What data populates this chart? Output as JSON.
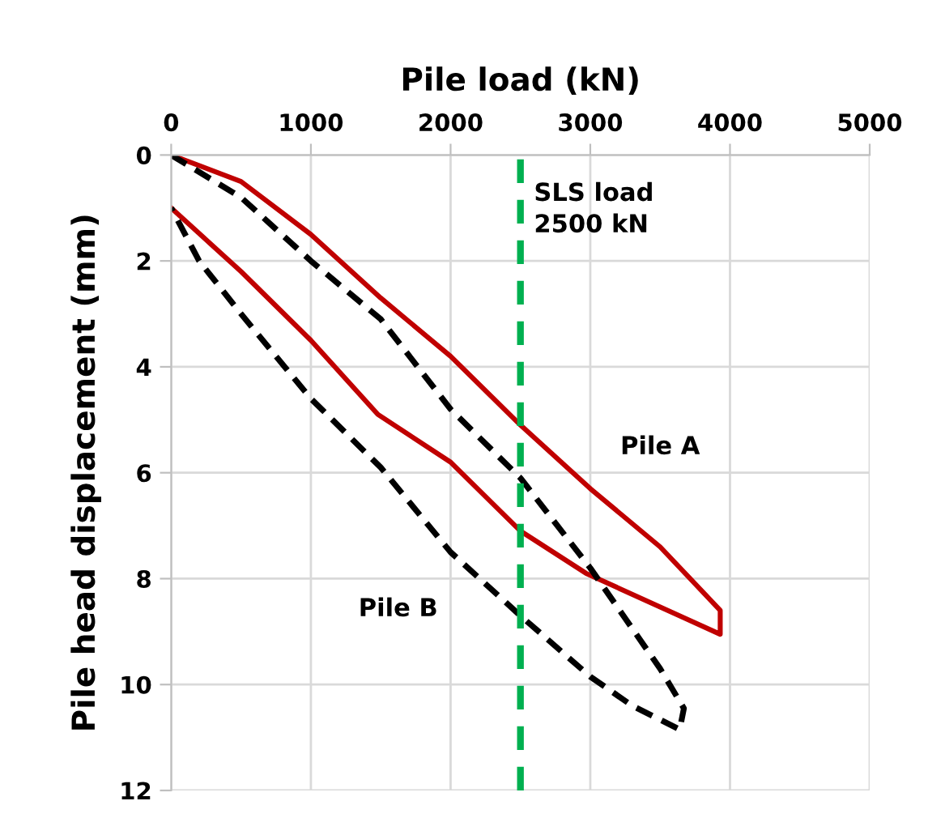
{
  "chart_data": {
    "type": "line",
    "xlabel": "Pile load (kN)",
    "ylabel": "Pile head displacement (mm)",
    "xlim": [
      0,
      5000
    ],
    "xticks": [
      0,
      1000,
      2000,
      3000,
      4000,
      5000
    ],
    "ylim": [
      12,
      0
    ],
    "yticks": [
      0,
      2,
      4,
      6,
      8,
      10,
      12
    ],
    "grid": true,
    "legend": false,
    "marker": "none",
    "series": [
      {
        "name": "Pile A",
        "color": "#c00000",
        "line_style": "solid",
        "x": [
          0,
          500,
          1000,
          1500,
          2000,
          2500,
          3000,
          3500,
          3930,
          3930,
          2970,
          2500,
          2000,
          1480,
          1000,
          500,
          0
        ],
        "values": [
          0,
          0.5,
          1.5,
          2.7,
          3.8,
          5.1,
          6.3,
          7.4,
          8.6,
          9.05,
          7.9,
          7.1,
          5.8,
          4.9,
          3.5,
          2.2,
          1.0
        ]
      },
      {
        "name": "Pile B",
        "color": "#000000",
        "line_style": "dashed",
        "x": [
          0,
          500,
          1000,
          1500,
          2000,
          2500,
          3000,
          3500,
          3670,
          3640,
          3300,
          3000,
          2500,
          2000,
          1500,
          1000,
          500,
          200,
          0
        ],
        "values": [
          0,
          0.8,
          2.0,
          3.1,
          4.8,
          6.1,
          7.8,
          9.7,
          10.45,
          10.85,
          10.4,
          9.85,
          8.7,
          7.5,
          5.9,
          4.6,
          3.0,
          2.0,
          1.0
        ]
      }
    ],
    "ref_lines": [
      {
        "axis": "x",
        "value": 2500,
        "label": "SLS load\n2500 kN",
        "color": "#00b050",
        "line_style": "dashed"
      }
    ]
  }
}
